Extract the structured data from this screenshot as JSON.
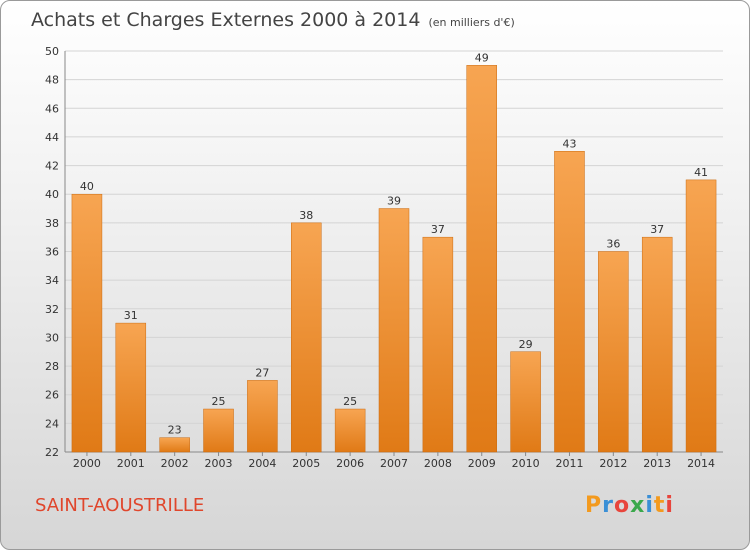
{
  "title": "Achats et Charges Externes 2000 à 2014",
  "subtitle": "(en milliers d'€)",
  "commune": "SAINT-AOUSTRILLE",
  "logo": {
    "letters": [
      "P",
      "r",
      "o",
      "x",
      "i",
      "t",
      "i"
    ],
    "colors": [
      "#f39a1e",
      "#3a8fd6",
      "#e8453c",
      "#3aa84b",
      "#3a8fd6",
      "#f39a1e",
      "#e8453c"
    ]
  },
  "colors": {
    "bar_top": "#f7a552",
    "bar_bottom": "#e07a16",
    "grid": "#d4d4d4",
    "title": "#444444",
    "commune": "#e0462c"
  },
  "chart_data": {
    "type": "bar",
    "categories": [
      "2000",
      "2001",
      "2002",
      "2003",
      "2004",
      "2005",
      "2006",
      "2007",
      "2008",
      "2009",
      "2010",
      "2011",
      "2012",
      "2013",
      "2014"
    ],
    "values": [
      40,
      31,
      23,
      25,
      27,
      38,
      25,
      39,
      37,
      49,
      29,
      43,
      36,
      37,
      41
    ],
    "ylim": [
      22,
      50
    ],
    "yticks": [
      22,
      24,
      26,
      28,
      30,
      32,
      34,
      36,
      38,
      40,
      42,
      44,
      46,
      48,
      50
    ],
    "grid": true
  }
}
